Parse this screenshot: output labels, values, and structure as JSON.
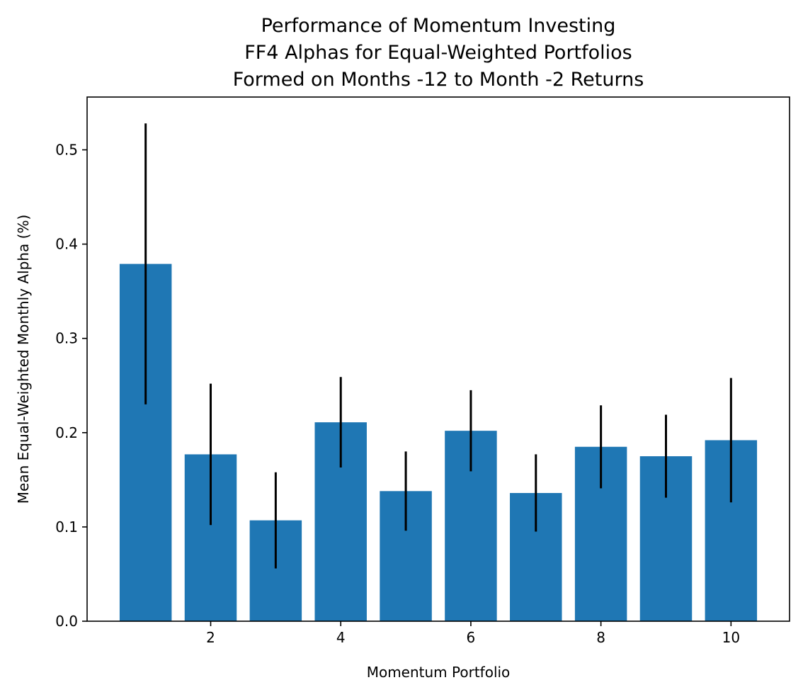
{
  "chart_data": {
    "type": "bar",
    "title": [
      "Performance of Momentum Investing",
      "FF4 Alphas for Equal-Weighted Portfolios",
      "Formed on Months -12 to Month -2 Returns"
    ],
    "xlabel": "Momentum Portfolio",
    "ylabel": "Mean Equal-Weighted Monthly Alpha (%)",
    "x": [
      1,
      2,
      3,
      4,
      5,
      6,
      7,
      8,
      9,
      10
    ],
    "values": [
      0.379,
      0.177,
      0.107,
      0.211,
      0.138,
      0.202,
      0.136,
      0.185,
      0.175,
      0.192
    ],
    "errors": [
      0.149,
      0.075,
      0.051,
      0.048,
      0.042,
      0.043,
      0.041,
      0.044,
      0.044,
      0.066
    ],
    "xlim": [
      0.1,
      10.9
    ],
    "ylim": [
      0,
      0.556
    ],
    "xticks": [
      2,
      4,
      6,
      8,
      10
    ],
    "xtick_labels": [
      "2",
      "4",
      "6",
      "8",
      "10"
    ],
    "yticks": [
      0.0,
      0.1,
      0.2,
      0.3,
      0.4,
      0.5
    ],
    "ytick_labels": [
      "0.0",
      "0.1",
      "0.2",
      "0.3",
      "0.4",
      "0.5"
    ],
    "grid": false,
    "legend": "none",
    "bar_color": "#1f77b4",
    "error_color": "#000000"
  }
}
